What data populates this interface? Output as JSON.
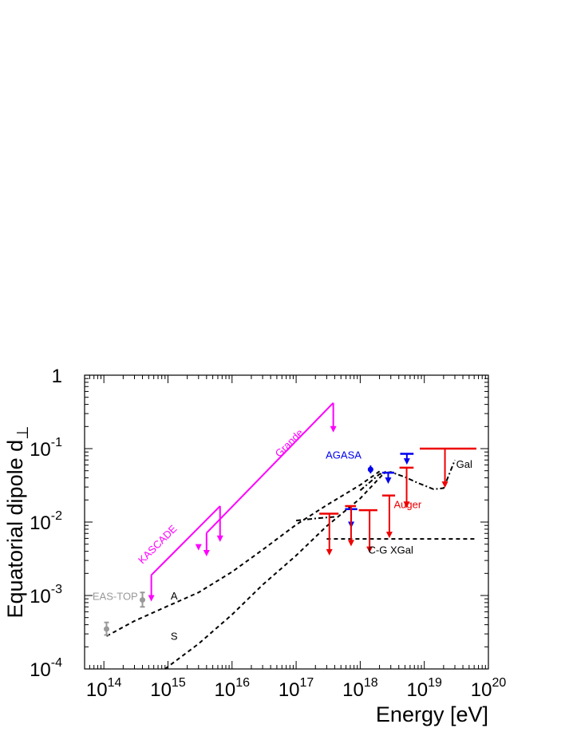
{
  "chart_data": {
    "type": "line",
    "xscale": "log",
    "yscale": "log",
    "xlim": [
      50000000000000.0,
      1e+20
    ],
    "ylim": [
      0.0001,
      1
    ],
    "xlabel": "Energy [eV]",
    "ylabel_main": "Equatorial dipole d",
    "ylabel_sub": "⊥",
    "x_ticks": [
      {
        "value": 100000000000000.0,
        "base": "10",
        "exp": "14"
      },
      {
        "value": 1000000000000000.0,
        "base": "10",
        "exp": "15"
      },
      {
        "value": 1e+16,
        "base": "10",
        "exp": "16"
      },
      {
        "value": 1e+17,
        "base": "10",
        "exp": "17"
      },
      {
        "value": 1e+18,
        "base": "10",
        "exp": "18"
      },
      {
        "value": 1e+19,
        "base": "10",
        "exp": "19"
      },
      {
        "value": 1e+20,
        "base": "10",
        "exp": "20"
      }
    ],
    "y_ticks": [
      {
        "value": 0.0001,
        "base": "10",
        "exp": "-4"
      },
      {
        "value": 0.001,
        "base": "10",
        "exp": "-3"
      },
      {
        "value": 0.01,
        "base": "10",
        "exp": "-2"
      },
      {
        "value": 0.1,
        "base": "10",
        "exp": "-1"
      },
      {
        "value": 1,
        "base": "1",
        "exp": ""
      }
    ],
    "colors": {
      "kascade": "#ff00ff",
      "eastop": "#999999",
      "agasa": "#0000ee",
      "auger": "#ee0000",
      "model": "#000000"
    },
    "annotations": [
      {
        "text": "KASCADE",
        "x": 750000000000000.0,
        "y": 0.0046,
        "color": "#ff00ff",
        "rotate": -45
      },
      {
        "text": "Grande",
        "x": 8.5e+16,
        "y": 0.11,
        "color": "#ff00ff",
        "rotate": -45
      },
      {
        "text": "EAS-TOP",
        "x": 150000000000000.0,
        "y": 0.00087,
        "color": "#999999",
        "rotate": 0
      },
      {
        "text": "AGASA",
        "x": 5.5e+17,
        "y": 0.073,
        "color": "#0000ee",
        "rotate": 0
      },
      {
        "text": "Auger",
        "x": 5.5e+18,
        "y": 0.0155,
        "color": "#ee0000",
        "rotate": 0
      },
      {
        "text": "Gal",
        "x": 4.2e+19,
        "y": 0.055,
        "color": "#000000",
        "rotate": 0
      },
      {
        "text": "C-G XGal",
        "x": 3e+18,
        "y": 0.0037,
        "color": "#000000",
        "rotate": 0
      },
      {
        "text": "A",
        "x": 1250000000000000.0,
        "y": 0.00088,
        "color": "#000000",
        "rotate": 0
      },
      {
        "text": "S",
        "x": 1250000000000000.0,
        "y": 0.00025,
        "color": "#000000",
        "rotate": 0
      }
    ],
    "kascade_grande_limits": {
      "line": [
        [
          550000000000000.0,
          0.0019
        ],
        [
          550000000000000.0,
          0.0019
        ],
        [
          1000000000000000.0,
          0.0032
        ],
        [
          6500000000000000.0,
          0.0165
        ]
      ],
      "line2": [
        [
          4000000000000000.0,
          0.0071
        ],
        [
          4000000000000000.0,
          0.0071
        ],
        [
          3.8e+17,
          0.42
        ]
      ],
      "arrows": [
        {
          "x": 550000000000000.0,
          "from": 0.0019,
          "to": 0.00085
        },
        {
          "x": 6500000000000000.0,
          "from": 0.0165,
          "to": 0.0055
        },
        {
          "x": 4000000000000000.0,
          "from": 0.0071,
          "to": 0.0035
        },
        {
          "x": 3.8e+17,
          "from": 0.42,
          "to": 0.17
        },
        {
          "x": 3000000000000000.0,
          "from": 0.0048,
          "to": 0.0042
        }
      ]
    },
    "eastop_points": [
      {
        "x": 110000000000000.0,
        "y": 0.00035,
        "ylo": 0.00029,
        "yhi": 0.00043
      },
      {
        "x": 400000000000000.0,
        "y": 0.00087,
        "ylo": 0.0007,
        "yhi": 0.0011
      }
    ],
    "agasa": {
      "point": {
        "x": 1.45e+18,
        "y": 0.052,
        "ylo": 0.046,
        "yhi": 0.059
      },
      "limits": [
        {
          "x1": 5.8e+17,
          "x2": 9e+17,
          "y": 0.015,
          "to": 0.0085
        },
        {
          "x1": 2.2e+18,
          "x2": 3.4e+18,
          "y": 0.047,
          "to": 0.034
        },
        {
          "x1": 4.2e+18,
          "x2": 6.8e+18,
          "y": 0.085,
          "to": 0.062
        }
      ]
    },
    "auger_limits": [
      {
        "x1": 2.3e+17,
        "x2": 4.6e+17,
        "xa": 3.3e+17,
        "y": 0.013,
        "to": 0.0036
      },
      {
        "x1": 5.8e+17,
        "x2": 8.6e+17,
        "xa": 7.2e+17,
        "y": 0.0165,
        "to": 0.0048
      },
      {
        "x1": 9.5e+17,
        "x2": 1.85e+18,
        "xa": 1.4e+18,
        "y": 0.0145,
        "to": 0.0039
      },
      {
        "x1": 2.2e+18,
        "x2": 3.5e+18,
        "xa": 2.85e+18,
        "y": 0.023,
        "to": 0.0062
      },
      {
        "x1": 4.1e+18,
        "x2": 6.8e+18,
        "xa": 5.3e+18,
        "y": 0.055,
        "to": 0.016
      },
      {
        "x1": 8.5e+18,
        "x2": 6.5e+19,
        "xa": 2.1e+19,
        "y": 0.1,
        "to": 0.03
      }
    ],
    "model_curves": {
      "A": [
        [
          110000000000000.0,
          0.00028
        ],
        [
          300000000000000.0,
          0.00045
        ],
        [
          1000000000000000.0,
          0.00072
        ],
        [
          3000000000000000.0,
          0.0011
        ],
        [
          1e+16,
          0.0021
        ],
        [
          3e+16,
          0.0042
        ],
        [
          1e+17,
          0.0092
        ],
        [
          3e+17,
          0.017
        ],
        [
          1e+18,
          0.032
        ],
        [
          2e+18,
          0.049
        ]
      ],
      "S": [
        [
          900000000000000.0,
          0.0001
        ],
        [
          3000000000000000.0,
          0.00022
        ],
        [
          1e+16,
          0.00055
        ],
        [
          3e+16,
          0.0014
        ],
        [
          1e+17,
          0.0035
        ],
        [
          3e+17,
          0.0088
        ],
        [
          1e+18,
          0.021
        ],
        [
          2.5e+18,
          0.049
        ]
      ],
      "Gal": [
        [
          1e+18,
          0.027
        ],
        [
          2e+18,
          0.045
        ],
        [
          3e+18,
          0.048
        ],
        [
          5e+18,
          0.041
        ],
        [
          8e+18,
          0.034
        ],
        [
          1.4e+19,
          0.028
        ],
        [
          2e+19,
          0.029
        ],
        [
          3e+19,
          0.07
        ]
      ],
      "CG_XGal": [
        [
          1e+17,
          0.0105
        ],
        [
          2e+17,
          0.0112
        ],
        [
          4e+17,
          0.0118
        ]
      ],
      "CG_XGal_flat": [
        [
          3e+17,
          0.0059
        ],
        [
          6.5e+19,
          0.0059
        ]
      ]
    }
  }
}
